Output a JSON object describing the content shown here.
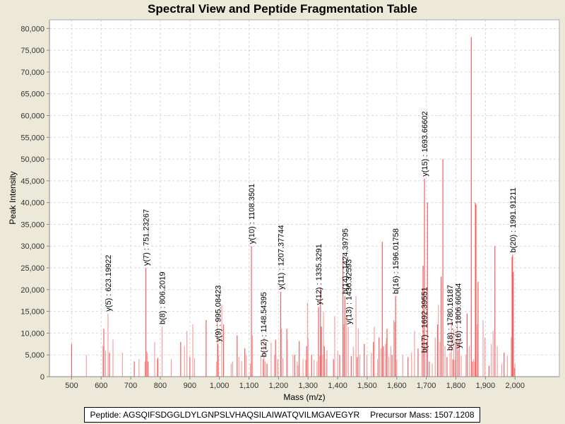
{
  "chart_data": {
    "type": "bar",
    "title": "Spectral View and Peptide Fragmentation Table",
    "xlabel": "Mass (m/z)",
    "ylabel": "Peak Intensity",
    "xlim": [
      425,
      2150
    ],
    "ylim": [
      0,
      82000
    ],
    "xticks": [
      500,
      600,
      700,
      800,
      900,
      1000,
      1100,
      1200,
      1300,
      1400,
      1500,
      1600,
      1700,
      1800,
      1900,
      2000
    ],
    "xtick_labels": [
      "500",
      "600",
      "700",
      "800",
      "900",
      "1,000",
      "1,100",
      "1,200",
      "1,300",
      "1,400",
      "1,500",
      "1,600",
      "1,700",
      "1,800",
      "1,900",
      "2,000"
    ],
    "yticks": [
      0,
      5000,
      10000,
      15000,
      20000,
      25000,
      30000,
      35000,
      40000,
      45000,
      50000,
      55000,
      60000,
      65000,
      70000,
      75000,
      80000
    ],
    "ytick_labels": [
      "0",
      "5,000",
      "10,000",
      "15,000",
      "20,000",
      "25,000",
      "30,000",
      "35,000",
      "40,000",
      "45,000",
      "50,000",
      "55,000",
      "60,000",
      "65,000",
      "70,000",
      "75,000",
      "80,000"
    ],
    "grid": true,
    "bar_color": "#f06060",
    "bar_color_light": "#f8a0a0",
    "peaks": [
      [
        500,
        7500
      ],
      [
        550,
        5000
      ],
      [
        606,
        7000
      ],
      [
        609,
        11000
      ],
      [
        615,
        6000
      ],
      [
        623.2,
        14500
      ],
      [
        628,
        5500
      ],
      [
        640,
        8500
      ],
      [
        672,
        5500
      ],
      [
        712,
        3500
      ],
      [
        728,
        4000
      ],
      [
        748,
        3500
      ],
      [
        751.2,
        25000
      ],
      [
        754,
        5800
      ],
      [
        756,
        5500
      ],
      [
        759,
        3500
      ],
      [
        781,
        8000
      ],
      [
        790,
        4000
      ],
      [
        792,
        4300
      ],
      [
        806.2,
        11500
      ],
      [
        837,
        4000
      ],
      [
        869,
        8000
      ],
      [
        882,
        7000
      ],
      [
        890,
        10500
      ],
      [
        900,
        4500
      ],
      [
        910,
        12000
      ],
      [
        916,
        4200
      ],
      [
        955,
        13000
      ],
      [
        990,
        3500
      ],
      [
        993,
        13200
      ],
      [
        995.1,
        7500
      ],
      [
        997,
        4800
      ],
      [
        1008,
        16500
      ],
      [
        1014,
        12000
      ],
      [
        1040,
        3000
      ],
      [
        1045,
        3500
      ],
      [
        1060,
        9500
      ],
      [
        1066,
        4500
      ],
      [
        1075,
        3600
      ],
      [
        1086,
        6500
      ],
      [
        1091,
        5000
      ],
      [
        1105,
        3000
      ],
      [
        1108.4,
        30000
      ],
      [
        1112,
        9500
      ],
      [
        1140,
        4500
      ],
      [
        1148.5,
        4000
      ],
      [
        1151,
        9000
      ],
      [
        1155,
        3500
      ],
      [
        1161,
        3000
      ],
      [
        1175,
        7800
      ],
      [
        1186,
        5000
      ],
      [
        1190,
        8500
      ],
      [
        1197,
        4000
      ],
      [
        1198,
        3800
      ],
      [
        1207.4,
        19500
      ],
      [
        1210,
        11000
      ],
      [
        1215,
        4300
      ],
      [
        1228,
        11000
      ],
      [
        1230,
        8500
      ],
      [
        1249,
        5000
      ],
      [
        1255,
        5000
      ],
      [
        1263,
        3500
      ],
      [
        1266,
        2500
      ],
      [
        1270,
        8200
      ],
      [
        1283,
        4000
      ],
      [
        1292,
        3800
      ],
      [
        1295,
        7000
      ],
      [
        1298,
        17000
      ],
      [
        1300,
        9000
      ],
      [
        1312,
        5000
      ],
      [
        1320,
        3800
      ],
      [
        1330,
        3500
      ],
      [
        1335.3,
        16000
      ],
      [
        1340,
        4800
      ],
      [
        1342,
        20500
      ],
      [
        1345,
        11500
      ],
      [
        1350,
        5000
      ],
      [
        1352,
        15000
      ],
      [
        1355,
        7000
      ],
      [
        1361,
        4000
      ],
      [
        1364,
        6000
      ],
      [
        1386,
        4000
      ],
      [
        1390,
        14000
      ],
      [
        1400,
        6000
      ],
      [
        1407,
        5000
      ],
      [
        1418,
        28000
      ],
      [
        1421,
        12000
      ],
      [
        1424.4,
        18500
      ],
      [
        1430,
        14000
      ],
      [
        1436.3,
        11500
      ],
      [
        1446,
        4700
      ],
      [
        1453,
        6900
      ],
      [
        1462,
        18500
      ],
      [
        1466,
        4500
      ],
      [
        1470,
        11000
      ],
      [
        1475,
        5000
      ],
      [
        1490,
        7500
      ],
      [
        1499,
        5000
      ],
      [
        1514,
        5500
      ],
      [
        1521,
        8000
      ],
      [
        1524,
        11500
      ],
      [
        1535,
        4000
      ],
      [
        1540,
        9000
      ],
      [
        1547,
        6500
      ],
      [
        1551,
        31000
      ],
      [
        1555,
        7000
      ],
      [
        1562,
        7500
      ],
      [
        1565,
        8800
      ],
      [
        1567,
        11000
      ],
      [
        1573,
        4500
      ],
      [
        1580,
        7000
      ],
      [
        1584,
        5000
      ],
      [
        1590,
        13000
      ],
      [
        1593,
        12500
      ],
      [
        1596,
        18500
      ],
      [
        1600,
        4000
      ],
      [
        1620,
        5000
      ],
      [
        1638,
        4500
      ],
      [
        1650,
        5500
      ],
      [
        1660,
        10500
      ],
      [
        1672,
        6500
      ],
      [
        1685,
        9000
      ],
      [
        1689,
        25500
      ],
      [
        1693.7,
        45500
      ],
      [
        1700,
        7500
      ],
      [
        1704,
        40000
      ],
      [
        1710,
        3500
      ],
      [
        1720,
        3000
      ],
      [
        1730,
        9000
      ],
      [
        1738,
        12000
      ],
      [
        1741,
        16500
      ],
      [
        1746,
        8000
      ],
      [
        1750,
        23000
      ],
      [
        1756,
        50000
      ],
      [
        1763,
        7000
      ],
      [
        1770,
        4500
      ],
      [
        1780.2,
        5500
      ],
      [
        1785,
        13000
      ],
      [
        1790,
        4000
      ],
      [
        1793,
        11000
      ],
      [
        1796,
        3800
      ],
      [
        1800,
        8000
      ],
      [
        1805,
        16500
      ],
      [
        1806.7,
        6000
      ],
      [
        1811,
        8500
      ],
      [
        1818,
        4800
      ],
      [
        1834,
        5000
      ],
      [
        1838,
        14500
      ],
      [
        1845,
        7000
      ],
      [
        1852,
        78000
      ],
      [
        1856,
        3500
      ],
      [
        1860,
        4000
      ],
      [
        1864,
        3500
      ],
      [
        1866,
        40000
      ],
      [
        1868,
        39500
      ],
      [
        1872,
        12000
      ],
      [
        1875,
        21800
      ],
      [
        1892,
        13000
      ],
      [
        1898,
        9000
      ],
      [
        1912,
        2500
      ],
      [
        1920,
        7500
      ],
      [
        1926,
        10500
      ],
      [
        1932,
        30000
      ],
      [
        1940,
        7000
      ],
      [
        1955,
        3000
      ],
      [
        1963,
        5500
      ],
      [
        1974,
        4800
      ],
      [
        1987,
        9000
      ],
      [
        1990,
        27500
      ],
      [
        1991.9,
        28000
      ],
      [
        1994,
        24000
      ],
      [
        1998,
        2000
      ],
      [
        2000,
        3000
      ]
    ],
    "annotations": [
      {
        "label": "y(5) : 623.19922",
        "mz": 623.19922,
        "intensity": 14500
      },
      {
        "label": "y(7) : 751.23267",
        "mz": 751.23267,
        "intensity": 25000
      },
      {
        "label": "b(8) : 806.2019",
        "mz": 806.2019,
        "intensity": 11500
      },
      {
        "label": "y(9) : 995.08423",
        "mz": 995.08423,
        "intensity": 7500
      },
      {
        "label": "y(10) : 1108.3501",
        "mz": 1108.3501,
        "intensity": 30000
      },
      {
        "label": "b(12) : 1148.54395",
        "mz": 1148.54395,
        "intensity": 4000
      },
      {
        "label": "y(11) : 1207.37744",
        "mz": 1207.37744,
        "intensity": 19500
      },
      {
        "label": "y(12) : 1335.3291",
        "mz": 1335.3291,
        "intensity": 16000
      },
      {
        "label": "b(14) : 1424.39795",
        "mz": 1424.39795,
        "intensity": 18500
      },
      {
        "label": "y(13) : 1436.32593",
        "mz": 1436.32593,
        "intensity": 11500
      },
      {
        "label": "b(16) : 1596.01758",
        "mz": 1596.01758,
        "intensity": 18500
      },
      {
        "label": "y(15) : 1693.66602",
        "mz": 1693.66602,
        "intensity": 45500
      },
      {
        "label": "b(17) : 1692.39551",
        "mz": 1692.39551,
        "intensity": 5000
      },
      {
        "label": "b(18) : 1780.16187",
        "mz": 1780.16187,
        "intensity": 5500
      },
      {
        "label": "y(16) : 1806.66064",
        "mz": 1806.66064,
        "intensity": 6000
      },
      {
        "label": "b(20) : 1991.91211",
        "mz": 1991.91211,
        "intensity": 28000
      }
    ]
  },
  "footer": {
    "peptide": "Peptide: AGSQIFSDGGLDYLGNPSLVHAQSILAIWATQVILMGAVEGYR",
    "precursor": "Precursor Mass: 1507.1208"
  }
}
